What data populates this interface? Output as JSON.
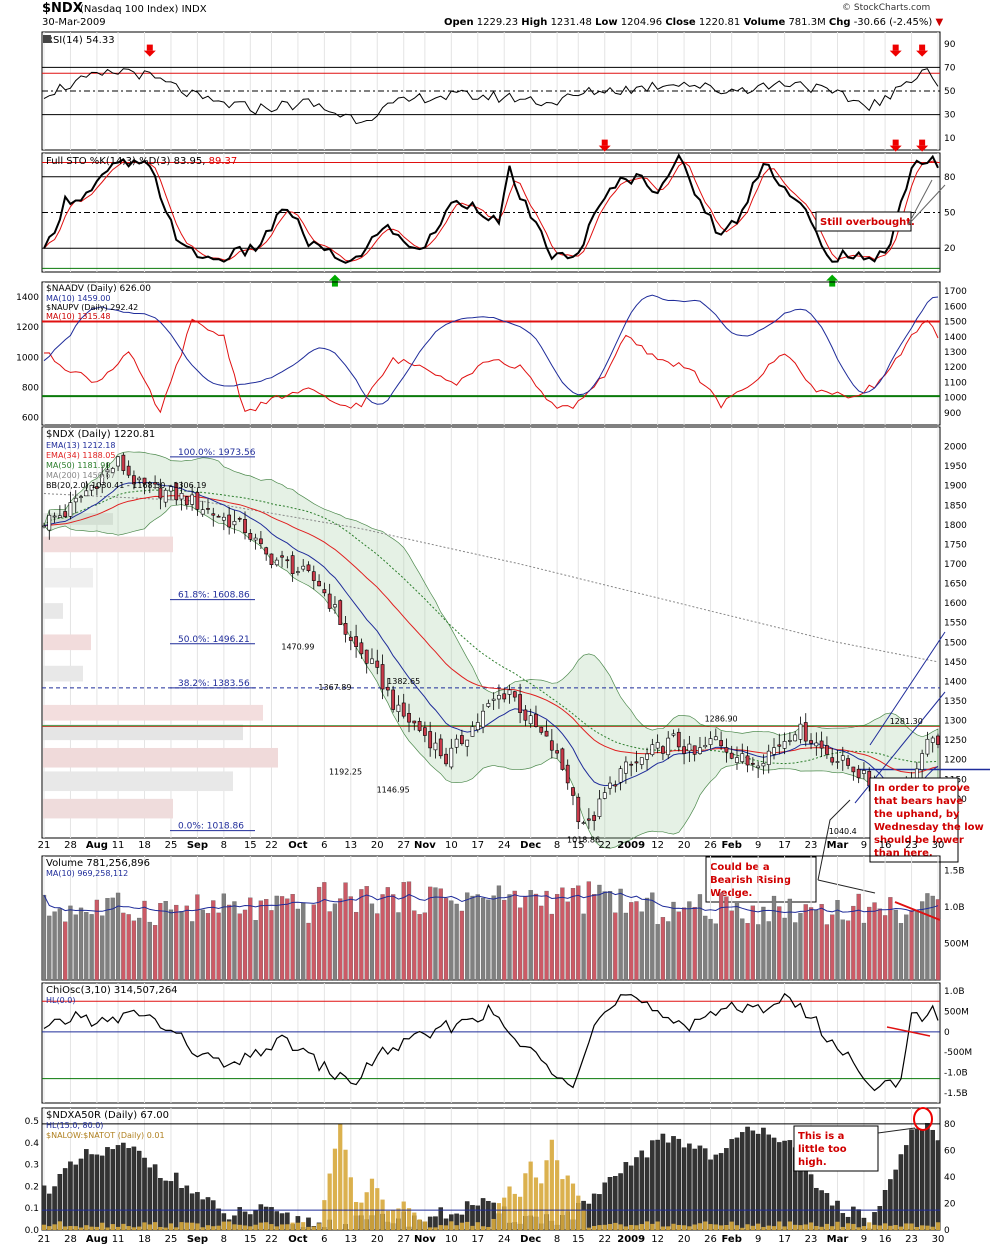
{
  "header": {
    "symbol": "$NDX",
    "name": "(Nasdaq 100 Index)",
    "exchange": "INDX",
    "date": "30-Mar-2009",
    "brand": "© StockCharts.com",
    "open_label": "Open",
    "open": "1229.23",
    "high_label": "High",
    "high": "1231.48",
    "low_label": "Low",
    "low": "1204.96",
    "close_label": "Close",
    "close": "1220.81",
    "volume_label": "Volume",
    "volume": "781.3M",
    "chg_label": "Chg",
    "chg": "-30.66 (-2.45%)"
  },
  "x_axis": {
    "labels": [
      "21",
      "28",
      "Aug",
      "11",
      "18",
      "25",
      "Sep",
      "8",
      "15",
      "22",
      "Oct",
      "6",
      "13",
      "20",
      "27",
      "Nov",
      "10",
      "17",
      "24",
      "Dec",
      "8",
      "15",
      "22",
      "2009",
      "12",
      "20",
      "26",
      "Feb",
      "9",
      "17",
      "23",
      "Mar",
      "9",
      "16",
      "23",
      "30"
    ],
    "bold": [
      "Aug",
      "Sep",
      "Oct",
      "Nov",
      "Dec",
      "2009",
      "Feb",
      "Mar"
    ]
  },
  "colors": {
    "up": "#808080",
    "down": "#c83a4a",
    "ema13": "#1f2c9a",
    "ema34": "#e02020",
    "ma50": "#2b7d2b",
    "ma200": "#888888",
    "bb": "#4e8a4e",
    "rsi": "#000000",
    "red_line": "#e01010",
    "green_line": "#0a7a0a",
    "gold": "#d7a93b",
    "navy": "#1f2c9a"
  },
  "chart_data": [
    {
      "panel": "rsi",
      "type": "line",
      "title": "RSI(14) 54.33",
      "ylim": [
        0,
        100
      ],
      "yticks": [
        10,
        30,
        50,
        70,
        90
      ],
      "levels": [
        30,
        50,
        70
      ],
      "series": [
        {
          "name": "RSI(14)",
          "last": 54.33
        }
      ]
    },
    {
      "panel": "stochastic",
      "type": "line",
      "title_prefix": "Full STO %K(14,3) %D(3)",
      "k_value": "83.95",
      "d_value": "89.37",
      "ylim": [
        0,
        100
      ],
      "yticks": [
        20,
        50,
        80
      ],
      "levels": [
        20,
        50,
        80
      ],
      "series": [
        {
          "name": "%K",
          "last": 83.95
        },
        {
          "name": "%D",
          "last": 89.37
        }
      ],
      "annotation": "Still overbought."
    },
    {
      "panel": "breadth",
      "type": "line",
      "title": "$NAADV (Daily) 626.00",
      "legend": [
        "MA(10) 1459.00",
        "$NAUPV (Daily) 292.42",
        "MA(10) 1315.48"
      ],
      "left_yticks": [
        600,
        800,
        1000,
        1200,
        1400
      ],
      "right_yticks": [
        900,
        1000,
        1100,
        1200,
        1300,
        1400,
        1500,
        1600,
        1700
      ],
      "levels_right": [
        1500,
        1000
      ]
    },
    {
      "panel": "price",
      "type": "candlestick",
      "title": "$NDX (Daily) 1220.81",
      "legend": [
        "EMA(13) 1212.18",
        "EMA(34) 1188.05",
        "MA(50) 1181.90",
        "MA(200) 1450.67",
        "BB(20,2.0) 1030.41 - 1168.30 - 1306.19"
      ],
      "ylim": [
        1000,
        2050
      ],
      "yticks": [
        1100,
        1150,
        1200,
        1250,
        1300,
        1350,
        1400,
        1450,
        1500,
        1550,
        1600,
        1650,
        1700,
        1750,
        1800,
        1850,
        1900,
        1950,
        2000
      ],
      "fib_levels": [
        {
          "label": "100.0%: 1973.56",
          "value": 1973.56
        },
        {
          "label": "61.8%: 1608.86",
          "value": 1608.86
        },
        {
          "label": "50.0%: 1496.21",
          "value": 1496.21
        },
        {
          "label": "38.2%: 1383.56",
          "value": 1383.56
        },
        {
          "label": "0.0%: 1018.86",
          "value": 1018.86
        }
      ],
      "price_labels": [
        {
          "text": "1470.99",
          "value": 1470.99
        },
        {
          "text": "1367.89",
          "value": 1367.89
        },
        {
          "text": "1382.65",
          "value": 1382.65
        },
        {
          "text": "1192.25",
          "value": 1192.25
        },
        {
          "text": "1146.95",
          "value": 1146.95
        },
        {
          "text": "1018.86",
          "value": 1018.86
        },
        {
          "text": "1286.90",
          "value": 1286.9
        },
        {
          "text": "1281.30",
          "value": 1281.3
        },
        {
          "text": "1040.4",
          "value": 1040.4
        }
      ],
      "annotations": [
        "In order to prove that bears have the uphand, by Wednesday the low should be lower than here.",
        "Could be a Bearish Rising Wedge."
      ]
    },
    {
      "panel": "volume",
      "type": "bar",
      "title": "Volume 781,256,896",
      "legend": [
        "MA(10) 969,258,112"
      ],
      "yticks": [
        "500M",
        "1.0B",
        "1.5B"
      ]
    },
    {
      "panel": "chaikin",
      "type": "line",
      "title": "ChiOsc(3,10) 314,507,264",
      "legend": [
        "HL(0.0)"
      ],
      "yticks": [
        "1.0B",
        "500M",
        "0",
        "-500M",
        "-1.0B",
        "-1.5B"
      ]
    },
    {
      "panel": "ndxa50r",
      "type": "bar",
      "title": "$NDXA50R (Daily) 67.00",
      "legend": [
        "HL(15.0, 80.0)",
        "$NALOW:$NATOT (Daily) 0.01"
      ],
      "left_yticks": [
        "0.0",
        "0.1",
        "0.2",
        "0.3",
        "0.4",
        "0.5"
      ],
      "right_yticks": [
        "0",
        "20",
        "40",
        "60",
        "80"
      ],
      "levels_right": [
        15,
        80
      ],
      "annotation": "This is a little too high."
    }
  ]
}
